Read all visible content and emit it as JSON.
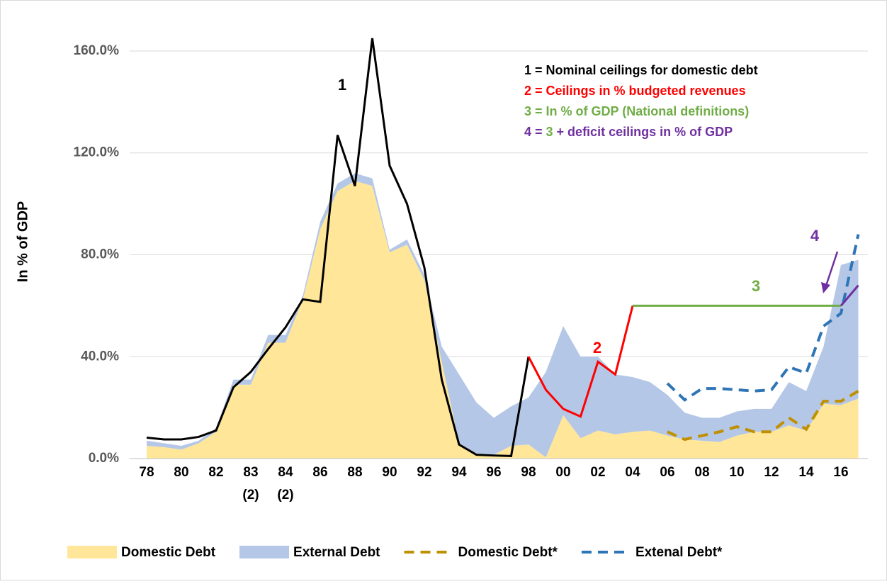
{
  "chart_data": {
    "type": "area-line",
    "y_label": "In % of GDP",
    "categories": [
      "78",
      null,
      "80",
      null,
      "82",
      null,
      "83",
      null,
      "84",
      null,
      "86",
      null,
      "88",
      null,
      "90",
      null,
      "92",
      null,
      "94",
      null,
      "96",
      null,
      "98",
      null,
      "00",
      null,
      "02",
      null,
      "04",
      null,
      "06",
      null,
      "08",
      null,
      "10",
      null,
      "12",
      null,
      "14",
      null,
      "16",
      null
    ],
    "category_notes": [
      null,
      null,
      null,
      null,
      null,
      null,
      "(2)",
      null,
      "(2)",
      null,
      null,
      null,
      null,
      null,
      null,
      null,
      null,
      null,
      null,
      null,
      null,
      null,
      null,
      null,
      null,
      null,
      null,
      null,
      null,
      null,
      null,
      null,
      null,
      null,
      null,
      null,
      null,
      null,
      null,
      null,
      null,
      null
    ],
    "ylim": [
      0,
      170
    ],
    "yticks": [
      {
        "value": 0,
        "label": "0.0%"
      },
      {
        "value": 40,
        "label": "40.0%"
      },
      {
        "value": 80,
        "label": "80.0%"
      },
      {
        "value": 120,
        "label": "120.0%"
      },
      {
        "value": 160,
        "label": "160.0%"
      }
    ],
    "grid": true,
    "series": [
      {
        "name": "Domestic Debt",
        "kind": "stacked-area",
        "color": "#ffe699",
        "values": [
          5,
          4.5,
          3.5,
          6,
          10.5,
          29,
          29,
          45.5,
          45.5,
          62.5,
          90,
          105,
          109,
          107,
          81,
          84,
          70,
          38,
          6,
          2,
          1.5,
          5,
          5.5,
          0.5,
          17,
          8,
          11,
          9.5,
          10.5,
          11,
          9,
          7.5,
          7,
          6.5,
          9,
          10.5,
          10.5,
          13,
          11,
          21.5,
          21,
          23.5
        ]
      },
      {
        "name": "External Debt",
        "kind": "stacked-area",
        "color": "#b4c7e7",
        "values": [
          2,
          1.5,
          1.5,
          1,
          1.5,
          2,
          2,
          3,
          3,
          1.5,
          3,
          3,
          3,
          3,
          1,
          2,
          2,
          6,
          27,
          20,
          14.5,
          15.5,
          18.5,
          33.5,
          35,
          32,
          29,
          23.5,
          21.5,
          19,
          16,
          10.5,
          9,
          9.5,
          9.5,
          9,
          9,
          17,
          15.5,
          22.5,
          55,
          54.5
        ]
      },
      {
        "name": "Domestic Debt*",
        "kind": "dashed",
        "color": "#bf9000",
        "values": [
          null,
          null,
          null,
          null,
          null,
          null,
          null,
          null,
          null,
          null,
          null,
          null,
          null,
          null,
          null,
          null,
          null,
          null,
          null,
          null,
          null,
          null,
          null,
          null,
          null,
          null,
          null,
          null,
          null,
          null,
          10.5,
          7.5,
          9,
          10.5,
          12.5,
          10.5,
          10.5,
          16,
          11.5,
          22.5,
          22.5,
          26.5
        ]
      },
      {
        "name": "Extenal Debt*",
        "kind": "dashed",
        "color": "#2e75b6",
        "values": [
          null,
          null,
          null,
          null,
          null,
          null,
          null,
          null,
          null,
          null,
          null,
          null,
          null,
          null,
          null,
          null,
          null,
          null,
          null,
          null,
          null,
          null,
          null,
          null,
          null,
          null,
          null,
          null,
          null,
          null,
          29.5,
          23,
          27.5,
          27.5,
          27,
          26.5,
          27,
          36,
          33.5,
          52,
          57,
          88
        ]
      },
      {
        "kind": "line",
        "color": "#000000",
        "values": [
          8.2,
          7.5,
          7.5,
          8.5,
          11,
          28,
          34,
          43,
          51.5,
          62.5,
          61.5,
          127,
          107,
          165,
          115,
          100,
          75,
          31,
          5.5,
          1.5,
          1.2,
          1,
          40,
          null,
          null,
          null,
          null,
          null,
          null,
          null,
          null,
          null,
          null,
          null,
          null,
          null,
          null,
          null,
          null,
          null,
          null,
          null
        ]
      },
      {
        "kind": "line",
        "color": "#ff0000",
        "values": [
          null,
          null,
          null,
          null,
          null,
          null,
          null,
          null,
          null,
          null,
          null,
          null,
          null,
          null,
          null,
          null,
          null,
          null,
          null,
          null,
          null,
          null,
          40,
          27,
          19.5,
          16.5,
          38,
          33,
          60,
          null,
          null,
          null,
          null,
          null,
          null,
          null,
          null,
          null,
          null,
          null,
          null,
          null
        ]
      },
      {
        "kind": "line",
        "color": "#70ad47",
        "values": [
          null,
          null,
          null,
          null,
          null,
          null,
          null,
          null,
          null,
          null,
          null,
          null,
          null,
          null,
          null,
          null,
          null,
          null,
          null,
          null,
          null,
          null,
          null,
          null,
          null,
          null,
          null,
          null,
          60,
          60,
          60,
          60,
          60,
          60,
          60,
          60,
          60,
          60,
          60,
          60,
          60,
          null
        ]
      },
      {
        "kind": "line",
        "color": "#7030a0",
        "values": [
          null,
          null,
          null,
          null,
          null,
          null,
          null,
          null,
          null,
          null,
          null,
          null,
          null,
          null,
          null,
          null,
          null,
          null,
          null,
          null,
          null,
          null,
          null,
          null,
          null,
          null,
          null,
          null,
          null,
          null,
          null,
          null,
          null,
          null,
          null,
          null,
          null,
          null,
          null,
          null,
          60,
          68
        ]
      }
    ],
    "annotations": [
      "1",
      "2",
      "3",
      "4"
    ],
    "notes": [
      [
        "1 = Nominal ceilings for domestic debt"
      ],
      [
        "2 = Ceilings in % budgeted revenues"
      ],
      [
        "3 = In % of GDP (National definitions)"
      ],
      [
        "4 = ",
        "3",
        " + deficit ceilings in % of GDP"
      ]
    ]
  }
}
